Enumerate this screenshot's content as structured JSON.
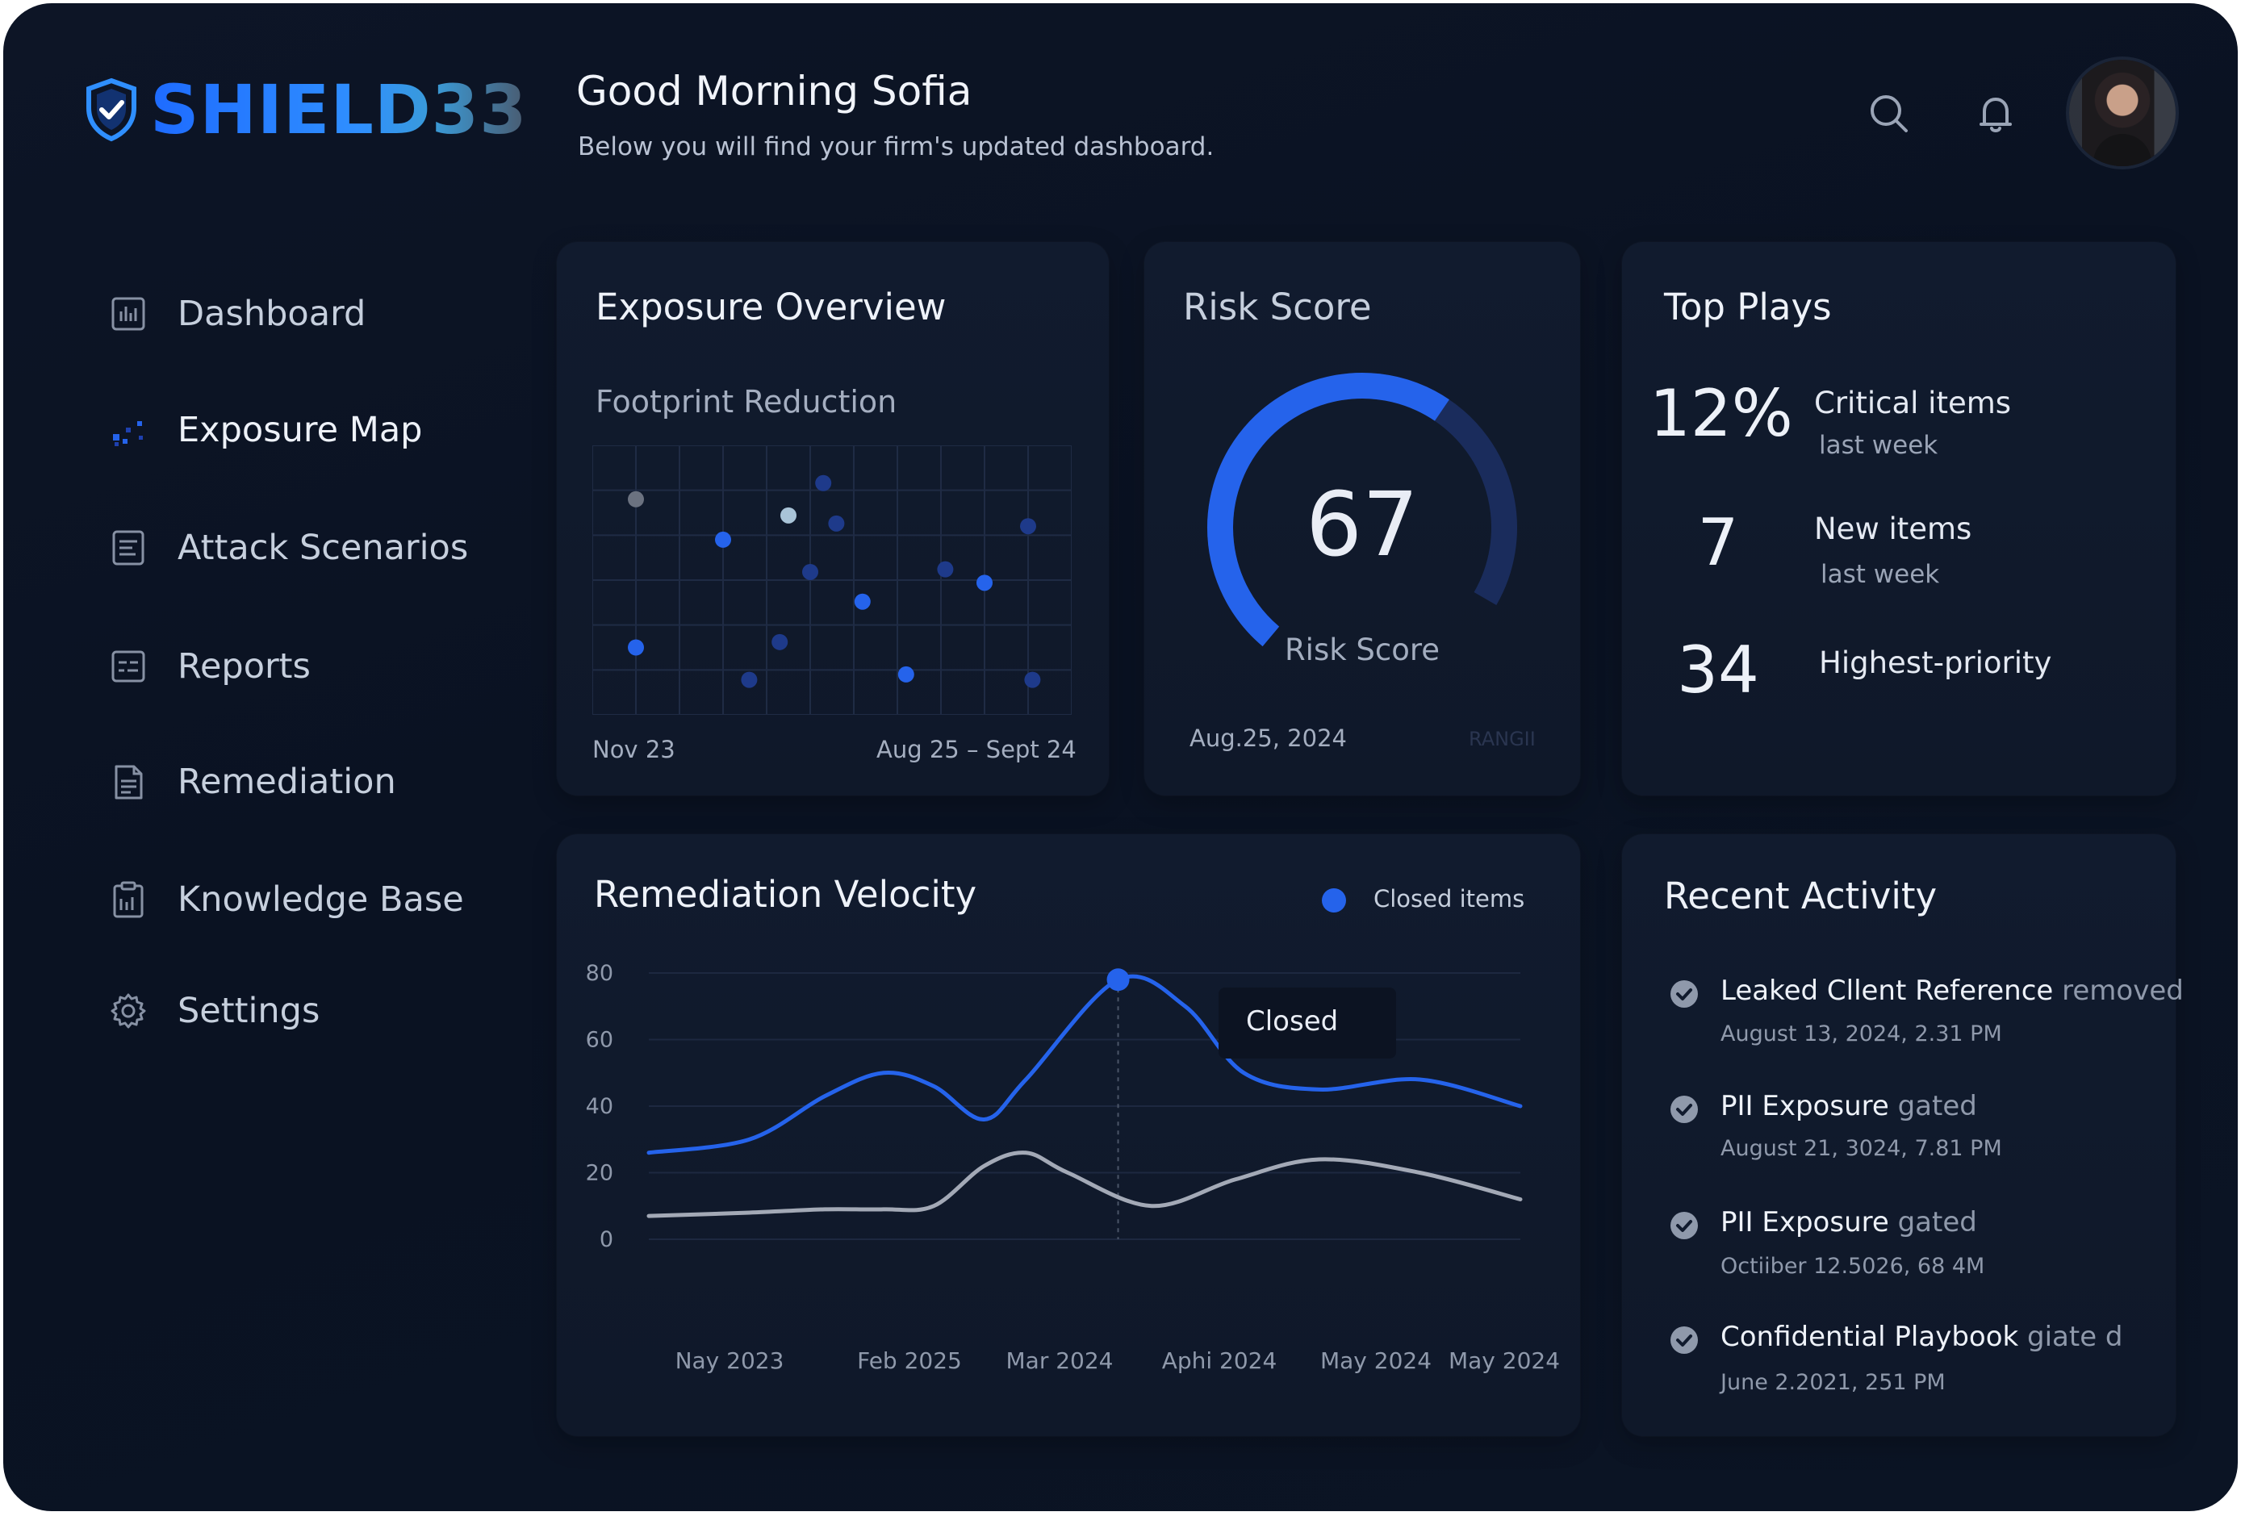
{
  "brand": {
    "name": "SHIELD33"
  },
  "header": {
    "greeting": "Good Morning Sofia",
    "subtitle": "Below you will find your firm's updated dashboard."
  },
  "sidebar": {
    "items": [
      {
        "label": "Dashboard",
        "icon": "bar-chart-icon"
      },
      {
        "label": "Exposure Map",
        "icon": "scatter-map-icon"
      },
      {
        "label": "Attack Scenarios",
        "icon": "list-doc-icon"
      },
      {
        "label": "Reports",
        "icon": "report-icon"
      },
      {
        "label": "Remediation",
        "icon": "clipboard-doc-icon"
      },
      {
        "label": "Knowledge Base",
        "icon": "book-icon"
      },
      {
        "label": "Settings",
        "icon": "gear-icon"
      }
    ],
    "active": "Exposure Map"
  },
  "exposure": {
    "title": "Exposure Overview",
    "subtitle": "Footprint Reduction",
    "start_label": "Nov 23",
    "end_label": "Aug 25 – Sept 24"
  },
  "risk": {
    "title": "Risk Score",
    "value": "67",
    "label": "Risk Score",
    "date": "Aug.25, 2024",
    "faint_label": "RANGII",
    "fraction": 0.67
  },
  "top_plays": {
    "title": "Top Plays",
    "items": [
      {
        "value": "12%",
        "label": "Critical items",
        "sub": "last week"
      },
      {
        "value": "7",
        "label": "New items",
        "sub": "last week"
      },
      {
        "value": "34",
        "label": "Highest-priority",
        "sub": ""
      }
    ]
  },
  "velocity": {
    "title": "Remediation Velocity",
    "legend": "Closed items",
    "tooltip": "Closed"
  },
  "activity": {
    "title": "Recent Activity",
    "items": [
      {
        "name": "Leaked Cllent Reference",
        "verb": "removed",
        "date": "August 13, 2024, 2.31 PM"
      },
      {
        "name": "PII Exposure",
        "verb": "gated",
        "date": "August 21, 3024, 7.81 PM"
      },
      {
        "name": "PII Exposure",
        "verb": "gated",
        "date": "Octiiber 12.5026, 68 4M"
      },
      {
        "name": "Confidential Playbook",
        "verb": "giate d",
        "date": "June 2.2021, 251 PM"
      }
    ]
  },
  "colors": {
    "accent": "#2563eb",
    "background": "#0b1322",
    "card": "#111b2e",
    "muted_line": "#a3a9b6"
  },
  "chart_data": [
    {
      "type": "scatter",
      "title": "Footprint Reduction",
      "x_labels": [
        "Nov 23",
        "Aug 25 – Sept 24"
      ],
      "grid": true,
      "points": [
        {
          "x": 1,
          "y": 8,
          "color": "#6b7280"
        },
        {
          "x": 3,
          "y": 6.5,
          "color": "#2563eb"
        },
        {
          "x": 4.5,
          "y": 7.4,
          "color": "#a9c4d8"
        },
        {
          "x": 5,
          "y": 5.3,
          "color": "#1e3a8a"
        },
        {
          "x": 5.3,
          "y": 8.6,
          "color": "#1e3a8a"
        },
        {
          "x": 5.6,
          "y": 7.1,
          "color": "#1e3a8a"
        },
        {
          "x": 6.2,
          "y": 4.2,
          "color": "#2563eb"
        },
        {
          "x": 8.1,
          "y": 5.4,
          "color": "#1e3a8a"
        },
        {
          "x": 9,
          "y": 4.9,
          "color": "#2563eb"
        },
        {
          "x": 10,
          "y": 7,
          "color": "#1e3a8a"
        },
        {
          "x": 1,
          "y": 2.5,
          "color": "#2563eb"
        },
        {
          "x": 3.6,
          "y": 1.3,
          "color": "#1e3a8a"
        },
        {
          "x": 4.3,
          "y": 2.7,
          "color": "#1e3a8a"
        },
        {
          "x": 7.2,
          "y": 1.5,
          "color": "#2563eb"
        },
        {
          "x": 10.1,
          "y": 1.3,
          "color": "#1e3a8a"
        }
      ]
    },
    {
      "type": "line",
      "title": "Remediation Velocity",
      "categories": [
        "Nay 2023",
        "Feb 2025",
        "Mar 2024",
        "Aphi 2024",
        "May 2024",
        "May 2024"
      ],
      "y_ticks": [
        0,
        20,
        40,
        60,
        80
      ],
      "ylim": [
        0,
        80
      ],
      "grid": true,
      "series": [
        {
          "name": "Closed items",
          "color": "#2563eb",
          "points": [
            [
              0,
              26
            ],
            [
              0.6,
              30
            ],
            [
              1.05,
              43
            ],
            [
              1.4,
              50
            ],
            [
              1.7,
              46
            ],
            [
              2.0,
              36
            ],
            [
              2.25,
              48
            ],
            [
              2.8,
              78
            ],
            [
              3.2,
              70
            ],
            [
              3.55,
              50
            ],
            [
              4.0,
              45
            ],
            [
              4.6,
              48
            ],
            [
              5.2,
              40
            ]
          ]
        },
        {
          "name": "",
          "color": "#a3a9b6",
          "points": [
            [
              0,
              7
            ],
            [
              0.6,
              8
            ],
            [
              1.05,
              9
            ],
            [
              1.4,
              9
            ],
            [
              1.7,
              10
            ],
            [
              2.0,
              22
            ],
            [
              2.25,
              26
            ],
            [
              2.5,
              20
            ],
            [
              3.0,
              10
            ],
            [
              3.5,
              18
            ],
            [
              4.0,
              24
            ],
            [
              4.6,
              20
            ],
            [
              5.2,
              12
            ]
          ]
        }
      ],
      "highlight": {
        "x": 2.8,
        "y": 78,
        "label": "Closed"
      }
    }
  ]
}
